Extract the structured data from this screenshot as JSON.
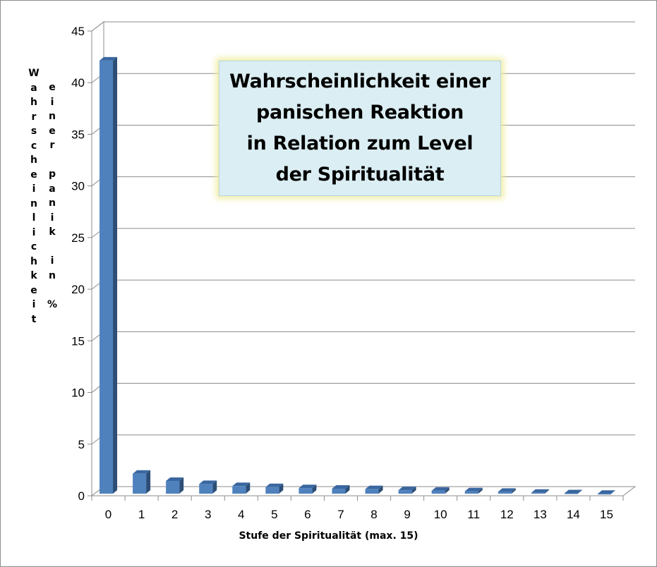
{
  "chart_data": {
    "type": "bar",
    "title": "Wahrscheinlichkeit einer\npanischen Reaktion\nin Relation zum Level\nder Spiritualität",
    "xlabel": "Stufe der Spiritualität  (max. 15)",
    "ylabel_col1": [
      "W",
      "a",
      "h",
      "r",
      "s",
      "c",
      "h",
      "e",
      "i",
      "n",
      "l",
      "i",
      "c",
      "h",
      "k",
      "e",
      "i",
      "t"
    ],
    "ylabel_col2": [
      "e",
      "i",
      "n",
      "e",
      "r",
      "",
      "p",
      "a",
      "n",
      "i",
      "k",
      "",
      "i",
      "n",
      "",
      "%"
    ],
    "categories": [
      "0",
      "1",
      "2",
      "3",
      "4",
      "5",
      "6",
      "7",
      "8",
      "9",
      "10",
      "11",
      "12",
      "13",
      "14",
      "15"
    ],
    "values": [
      42,
      2.0,
      1.3,
      1.0,
      0.8,
      0.7,
      0.6,
      0.55,
      0.5,
      0.4,
      0.35,
      0.3,
      0.25,
      0.15,
      0.1,
      0.05
    ],
    "ylim": [
      0,
      45
    ],
    "yticks": [
      0,
      5,
      10,
      15,
      20,
      25,
      30,
      35,
      40,
      45
    ],
    "grid": true,
    "legend": "none",
    "bar_color": "#4f81bd"
  }
}
